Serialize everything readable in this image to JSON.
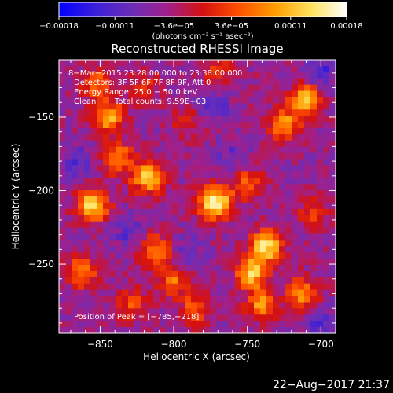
{
  "chart_data": {
    "type": "heatmap",
    "title": "Reconstructed RHESSI Image",
    "xlabel": "Heliocentric X (arcsec)",
    "ylabel": "Heliocentric Y (arcsec)",
    "xlim": [
      -878,
      -690
    ],
    "ylim": [
      -297,
      -111
    ],
    "x_ticks": [
      -850,
      -800,
      -750,
      -700
    ],
    "x_tick_labels": [
      "−850",
      "−800",
      "−750",
      "−700"
    ],
    "y_ticks": [
      -150,
      -200,
      -250
    ],
    "y_tick_labels": [
      "−150",
      "−200",
      "−250"
    ],
    "colorbar": {
      "range": [
        -0.00018,
        0.00018
      ],
      "ticks": [
        -0.00018,
        -0.00011,
        -3.6e-05,
        3.6e-05,
        0.00011,
        0.00018
      ],
      "tick_labels": [
        "−0.00018",
        "−0.00011",
        "−3.6e−05",
        "3.6e−05",
        "0.00011",
        "0.00018"
      ],
      "unit_label": "(photons cm⁻² s⁻¹ asec⁻²)",
      "colors": [
        "#0000ff",
        "#3a1fd8",
        "#6a2db8",
        "#a0208c",
        "#d41010",
        "#ff5000",
        "#ff9c00",
        "#ffe25a",
        "#ffffff"
      ]
    },
    "annotations": {
      "time_range": "8−Mar−2015 23:28:00.000 to 23:38:00.000",
      "detectors": "Detectors: 3F 5F 6F 7F 8F 9F, Att 0",
      "energy_range": "Energy Range: 25.0 − 50.0 keV",
      "clean": "Clean",
      "total_counts": "Total counts: 9.59E+03",
      "peak_position": "Position of Peak = [−785,−218]"
    },
    "peak": {
      "x": -785,
      "y": -218
    },
    "sources": [
      {
        "x": -772,
        "y": -208,
        "amp": 1.0
      },
      {
        "x": -855,
        "y": -210,
        "amp": 0.85
      },
      {
        "x": -817,
        "y": -191,
        "amp": 0.8
      },
      {
        "x": -838,
        "y": -178,
        "amp": 0.6
      },
      {
        "x": -845,
        "y": -150,
        "amp": 0.7
      },
      {
        "x": -737,
        "y": -238,
        "amp": 0.85
      },
      {
        "x": -747,
        "y": -256,
        "amp": 0.75
      },
      {
        "x": -710,
        "y": -138,
        "amp": 0.75
      },
      {
        "x": -725,
        "y": -155,
        "amp": 0.6
      },
      {
        "x": -712,
        "y": -270,
        "amp": 0.6
      },
      {
        "x": -740,
        "y": -278,
        "amp": 0.6
      },
      {
        "x": -813,
        "y": -240,
        "amp": 0.55
      },
      {
        "x": -862,
        "y": -255,
        "amp": 0.55
      },
      {
        "x": -800,
        "y": -260,
        "amp": 0.5
      },
      {
        "x": -785,
        "y": -280,
        "amp": 0.45
      },
      {
        "x": -828,
        "y": -277,
        "amp": 0.4
      },
      {
        "x": -750,
        "y": -195,
        "amp": 0.45
      },
      {
        "x": -705,
        "y": -215,
        "amp": 0.35
      },
      {
        "x": -770,
        "y": -120,
        "amp": 0.35
      },
      {
        "x": -852,
        "y": -127,
        "amp": 0.45
      },
      {
        "x": -820,
        "y": -130,
        "amp": 0.3
      },
      {
        "x": -790,
        "y": -152,
        "amp": 0.3
      }
    ],
    "dark_spots": [
      {
        "x": -775,
        "y": -142,
        "amp": 0.5
      },
      {
        "x": -700,
        "y": -120,
        "amp": 0.5
      },
      {
        "x": -865,
        "y": -180,
        "amp": 0.4
      },
      {
        "x": -830,
        "y": -228,
        "amp": 0.35
      },
      {
        "x": -700,
        "y": -290,
        "amp": 0.4
      },
      {
        "x": -790,
        "y": -242,
        "amp": 0.3
      },
      {
        "x": -760,
        "y": -176,
        "amp": 0.3
      }
    ]
  },
  "footer": {
    "timestamp": "22−Aug−2017 21:37"
  }
}
